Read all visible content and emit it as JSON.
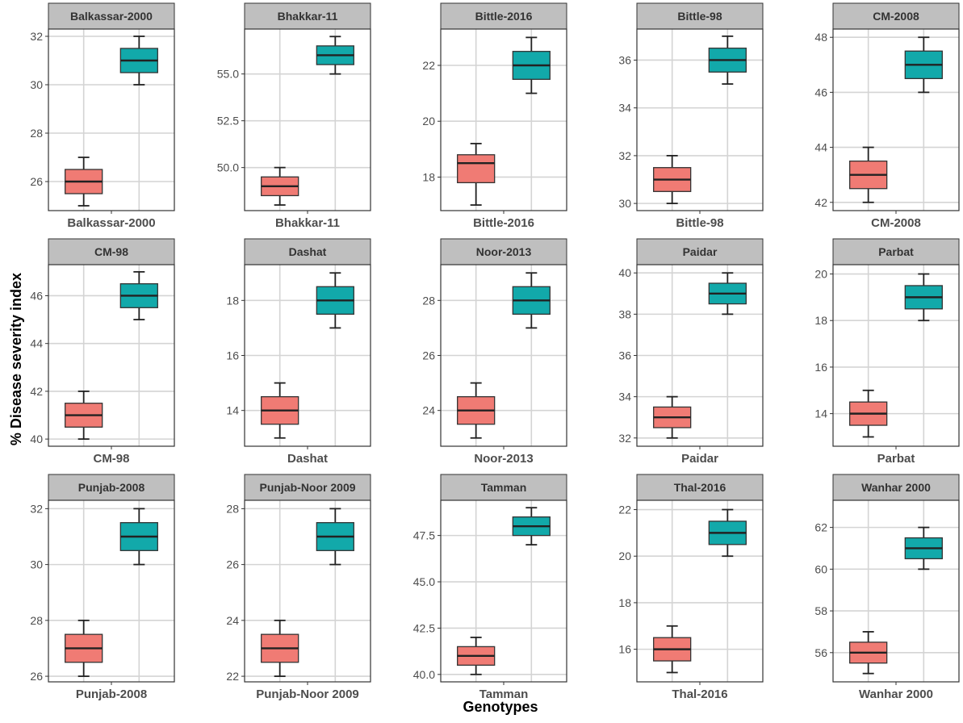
{
  "colors": {
    "strip_fill": "#bfbfbf",
    "panel_border": "#333333",
    "grid": "#d4d4d4",
    "box_low": "#f07b74",
    "box_high": "#12a9aa"
  },
  "chart_data": {
    "type": "boxplot",
    "ylabel": "% Disease severity index",
    "xlabel": "Genotypes",
    "grid": true,
    "facets": [
      {
        "title": "Balkassar-2000",
        "xtick": "Balkassar-2000",
        "ylim": [
          24.8,
          32.3
        ],
        "yticks": [
          26,
          28,
          30,
          32
        ],
        "ytick_labels": [
          "26",
          "28",
          "30",
          "32"
        ],
        "boxes": [
          {
            "min": 25,
            "q1": 25.5,
            "median": 26,
            "q3": 26.5,
            "max": 27
          },
          {
            "min": 30,
            "q1": 30.5,
            "median": 31,
            "q3": 31.5,
            "max": 32
          }
        ]
      },
      {
        "title": "Bhakkar-11",
        "xtick": "Bhakkar-11",
        "ylim": [
          47.7,
          57.4
        ],
        "yticks": [
          50,
          52.5,
          55
        ],
        "ytick_labels": [
          "50.0",
          "52.5",
          "55.0"
        ],
        "boxes": [
          {
            "min": 48,
            "q1": 48.5,
            "median": 49,
            "q3": 49.5,
            "max": 50
          },
          {
            "min": 55,
            "q1": 55.5,
            "median": 56,
            "q3": 56.5,
            "max": 57
          }
        ]
      },
      {
        "title": "Bittle-2016",
        "xtick": "Bittle-2016",
        "ylim": [
          16.8,
          23.3
        ],
        "yticks": [
          18,
          20,
          22
        ],
        "ytick_labels": [
          "18",
          "20",
          "22"
        ],
        "boxes": [
          {
            "min": 17,
            "q1": 17.8,
            "median": 18.5,
            "q3": 18.8,
            "max": 19.2
          },
          {
            "min": 21,
            "q1": 21.5,
            "median": 22,
            "q3": 22.5,
            "max": 23
          }
        ]
      },
      {
        "title": "Bittle-98",
        "xtick": "Bittle-98",
        "ylim": [
          29.7,
          37.3
        ],
        "yticks": [
          30,
          32,
          34,
          36
        ],
        "ytick_labels": [
          "30",
          "32",
          "34",
          "36"
        ],
        "boxes": [
          {
            "min": 30,
            "q1": 30.5,
            "median": 31,
            "q3": 31.5,
            "max": 32
          },
          {
            "min": 35,
            "q1": 35.5,
            "median": 36,
            "q3": 36.5,
            "max": 37
          }
        ]
      },
      {
        "title": "CM-2008",
        "xtick": "CM-2008",
        "ylim": [
          41.7,
          48.3
        ],
        "yticks": [
          42,
          44,
          46,
          48
        ],
        "ytick_labels": [
          "42",
          "44",
          "46",
          "48"
        ],
        "boxes": [
          {
            "min": 42,
            "q1": 42.5,
            "median": 43,
            "q3": 43.5,
            "max": 44
          },
          {
            "min": 46,
            "q1": 46.5,
            "median": 47,
            "q3": 47.5,
            "max": 48
          }
        ]
      },
      {
        "title": "CM-98",
        "xtick": "CM-98",
        "ylim": [
          39.7,
          47.3
        ],
        "yticks": [
          40,
          42,
          44,
          46
        ],
        "ytick_labels": [
          "40",
          "42",
          "44",
          "46"
        ],
        "boxes": [
          {
            "min": 40,
            "q1": 40.5,
            "median": 41,
            "q3": 41.5,
            "max": 42
          },
          {
            "min": 45,
            "q1": 45.5,
            "median": 46,
            "q3": 46.5,
            "max": 47
          }
        ]
      },
      {
        "title": "Dashat",
        "xtick": "Dashat",
        "ylim": [
          12.7,
          19.3
        ],
        "yticks": [
          14,
          16,
          18
        ],
        "ytick_labels": [
          "14",
          "16",
          "18"
        ],
        "boxes": [
          {
            "min": 13,
            "q1": 13.5,
            "median": 14,
            "q3": 14.5,
            "max": 15
          },
          {
            "min": 17,
            "q1": 17.5,
            "median": 18,
            "q3": 18.5,
            "max": 19
          }
        ]
      },
      {
        "title": "Noor-2013",
        "xtick": "Noor-2013",
        "ylim": [
          22.7,
          29.3
        ],
        "yticks": [
          24,
          26,
          28
        ],
        "ytick_labels": [
          "24",
          "26",
          "28"
        ],
        "boxes": [
          {
            "min": 23,
            "q1": 23.5,
            "median": 24,
            "q3": 24.5,
            "max": 25
          },
          {
            "min": 27,
            "q1": 27.5,
            "median": 28,
            "q3": 28.5,
            "max": 29
          }
        ]
      },
      {
        "title": "Paidar",
        "xtick": "Paidar",
        "ylim": [
          31.6,
          40.4
        ],
        "yticks": [
          32,
          34,
          36,
          38,
          40
        ],
        "ytick_labels": [
          "32",
          "34",
          "36",
          "38",
          "40"
        ],
        "boxes": [
          {
            "min": 32,
            "q1": 32.5,
            "median": 33,
            "q3": 33.5,
            "max": 34
          },
          {
            "min": 38,
            "q1": 38.5,
            "median": 39,
            "q3": 39.5,
            "max": 40
          }
        ]
      },
      {
        "title": "Parbat",
        "xtick": "Parbat",
        "ylim": [
          12.6,
          20.4
        ],
        "yticks": [
          14,
          16,
          18,
          20
        ],
        "ytick_labels": [
          "14",
          "16",
          "18",
          "20"
        ],
        "boxes": [
          {
            "min": 13,
            "q1": 13.5,
            "median": 14,
            "q3": 14.5,
            "max": 15
          },
          {
            "min": 18,
            "q1": 18.5,
            "median": 19,
            "q3": 19.5,
            "max": 20
          }
        ]
      },
      {
        "title": "Punjab-2008",
        "xtick": "Punjab-2008",
        "ylim": [
          25.8,
          32.3
        ],
        "yticks": [
          26,
          28,
          30,
          32
        ],
        "ytick_labels": [
          "26",
          "28",
          "30",
          "32"
        ],
        "boxes": [
          {
            "min": 26,
            "q1": 26.5,
            "median": 27,
            "q3": 27.5,
            "max": 28
          },
          {
            "min": 30,
            "q1": 30.5,
            "median": 31,
            "q3": 31.5,
            "max": 32
          }
        ]
      },
      {
        "title": "Punjab-Noor 2009",
        "xtick": "Punjab-Noor 2009",
        "ylim": [
          21.8,
          28.3
        ],
        "yticks": [
          22,
          24,
          26,
          28
        ],
        "ytick_labels": [
          "22",
          "24",
          "26",
          "28"
        ],
        "boxes": [
          {
            "min": 22,
            "q1": 22.5,
            "median": 23,
            "q3": 23.5,
            "max": 24
          },
          {
            "min": 26,
            "q1": 26.5,
            "median": 27,
            "q3": 27.5,
            "max": 28
          }
        ]
      },
      {
        "title": "Tamman",
        "xtick": "Tamman",
        "ylim": [
          39.6,
          49.4
        ],
        "yticks": [
          40,
          42.5,
          45,
          47.5
        ],
        "ytick_labels": [
          "40.0",
          "42.5",
          "45.0",
          "47.5"
        ],
        "boxes": [
          {
            "min": 40,
            "q1": 40.5,
            "median": 41,
            "q3": 41.5,
            "max": 42
          },
          {
            "min": 47,
            "q1": 47.5,
            "median": 48,
            "q3": 48.5,
            "max": 49
          }
        ]
      },
      {
        "title": "Thal-2016",
        "xtick": "Thal-2016",
        "ylim": [
          14.6,
          22.4
        ],
        "yticks": [
          16,
          18,
          20,
          22
        ],
        "ytick_labels": [
          "16",
          "18",
          "20",
          "22"
        ],
        "boxes": [
          {
            "min": 15,
            "q1": 15.5,
            "median": 16,
            "q3": 16.5,
            "max": 17
          },
          {
            "min": 20,
            "q1": 20.5,
            "median": 21,
            "q3": 21.5,
            "max": 22
          }
        ]
      },
      {
        "title": "Wanhar 2000",
        "xtick": "Wanhar 2000",
        "ylim": [
          54.6,
          63.3
        ],
        "yticks": [
          56,
          58,
          60,
          62
        ],
        "ytick_labels": [
          "56",
          "58",
          "60",
          "62"
        ],
        "boxes": [
          {
            "min": 55,
            "q1": 55.5,
            "median": 56,
            "q3": 56.5,
            "max": 57
          },
          {
            "min": 60,
            "q1": 60.5,
            "median": 61,
            "q3": 61.5,
            "max": 62
          }
        ]
      }
    ]
  }
}
